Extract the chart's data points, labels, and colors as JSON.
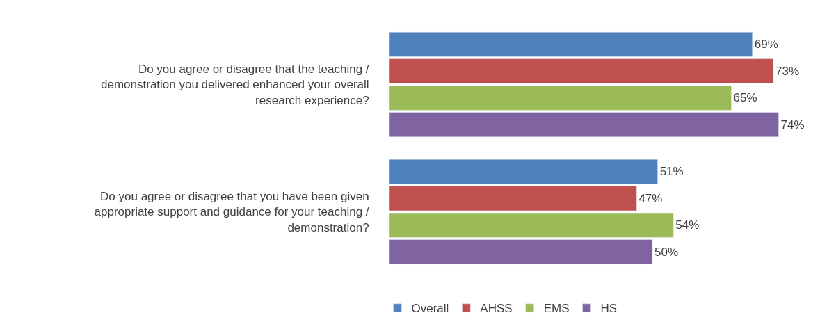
{
  "chart_data": {
    "type": "bar",
    "orientation": "horizontal",
    "categories": [
      "Do you agree or disagree that the teaching / demonstration you delivered enhanced your overall research experience?",
      "Do you agree or disagree that you have been given appropriate support and guidance for your teaching / demonstration?"
    ],
    "series": [
      {
        "name": "Overall",
        "color": "#4f81bd",
        "values": [
          69,
          51
        ],
        "value_labels": [
          "69%",
          "51%"
        ]
      },
      {
        "name": "AHSS",
        "color": "#c0504d",
        "values": [
          73,
          47
        ],
        "value_labels": [
          "73%",
          "47%"
        ]
      },
      {
        "name": "EMS",
        "color": "#9bbb59",
        "values": [
          65,
          54
        ],
        "value_labels": [
          "65%",
          "54%"
        ]
      },
      {
        "name": "HS",
        "color": "#8064a2",
        "values": [
          74,
          50
        ],
        "value_labels": [
          "74%",
          "50%"
        ]
      }
    ],
    "legend": "bottom",
    "tick_labels": "y"
  }
}
